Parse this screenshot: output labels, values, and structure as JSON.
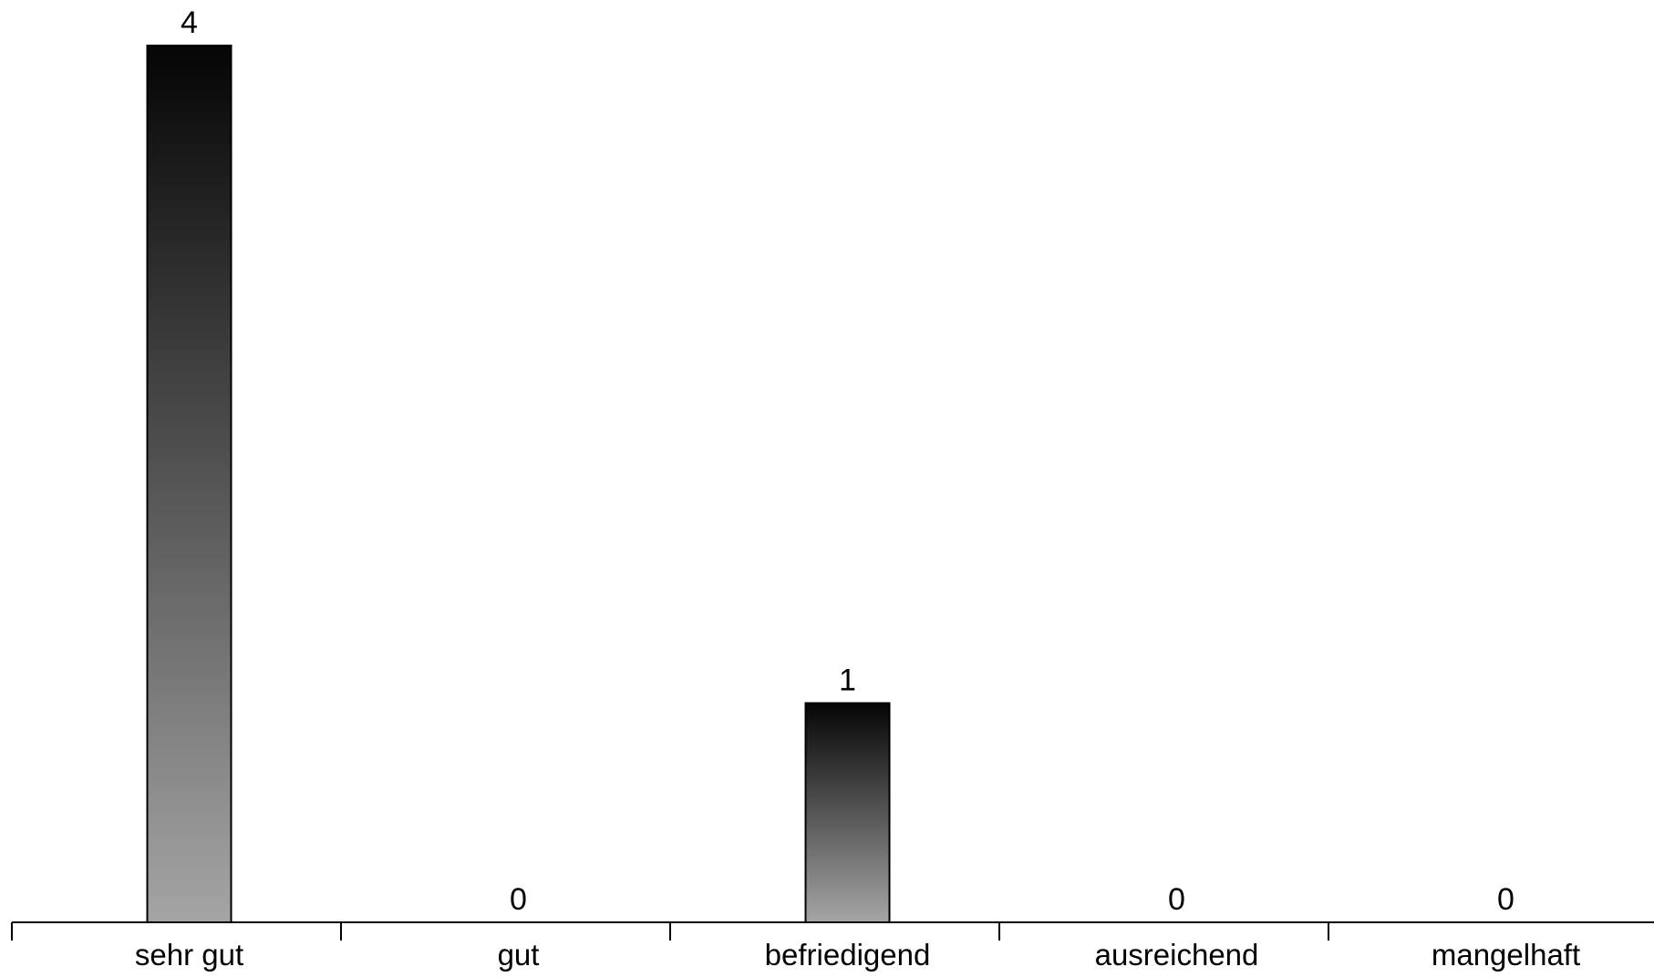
{
  "chart_data": {
    "type": "bar",
    "title": "",
    "xlabel": "",
    "ylabel": "",
    "categories": [
      "sehr gut",
      "gut",
      "befriedigend",
      "ausreichend",
      "mangelhaft"
    ],
    "values": [
      4,
      0,
      1,
      0,
      0
    ],
    "data_labels": [
      "4",
      "0",
      "1",
      "0",
      "0"
    ],
    "ylim": [
      0,
      4
    ],
    "grid": false,
    "legend": "none",
    "bar_fill": "vertical gradient",
    "colors": {
      "gradient_top": "#050505",
      "gradient_bottom": "#a5a5a5",
      "bar_border": "#000000",
      "axis": "#000000",
      "background": "#ffffff"
    }
  }
}
